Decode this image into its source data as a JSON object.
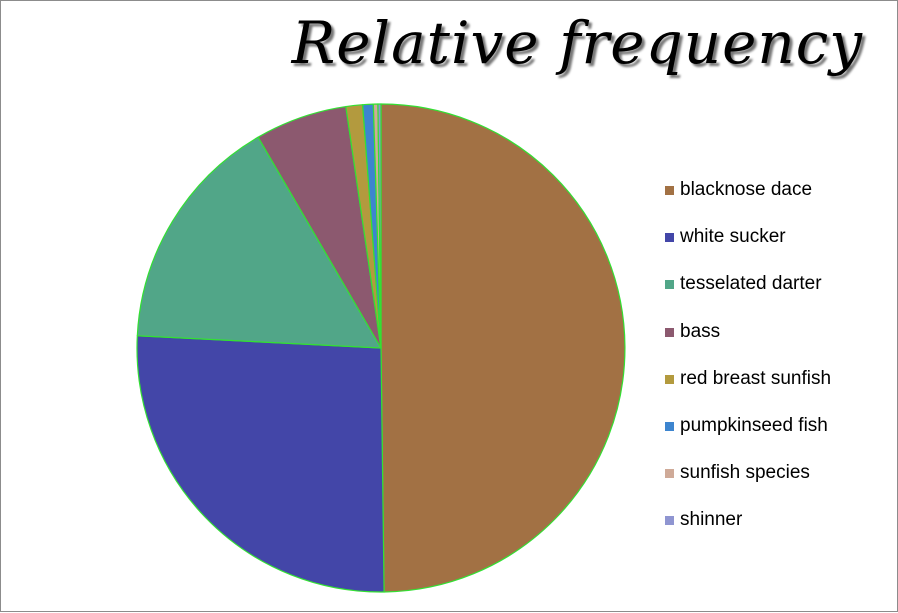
{
  "chart_data": {
    "type": "pie",
    "title": "Relative frequency",
    "categories": [
      "blacknose dace",
      "white sucker",
      "tesselated darter",
      "bass",
      "red breast sunfish",
      "pumpkinseed fish",
      "sunfish species",
      "shinner"
    ],
    "values": [
      49.8,
      26.0,
      15.8,
      6.1,
      1.1,
      0.7,
      0.3,
      0.2
    ],
    "colors": [
      "#a27144",
      "#4346a8",
      "#51a688",
      "#8c596f",
      "#b39a3e",
      "#3d85cf",
      "#cfaa98",
      "#8f95d1"
    ],
    "slice_border_color": "#33e033",
    "legend_placement": "right"
  }
}
